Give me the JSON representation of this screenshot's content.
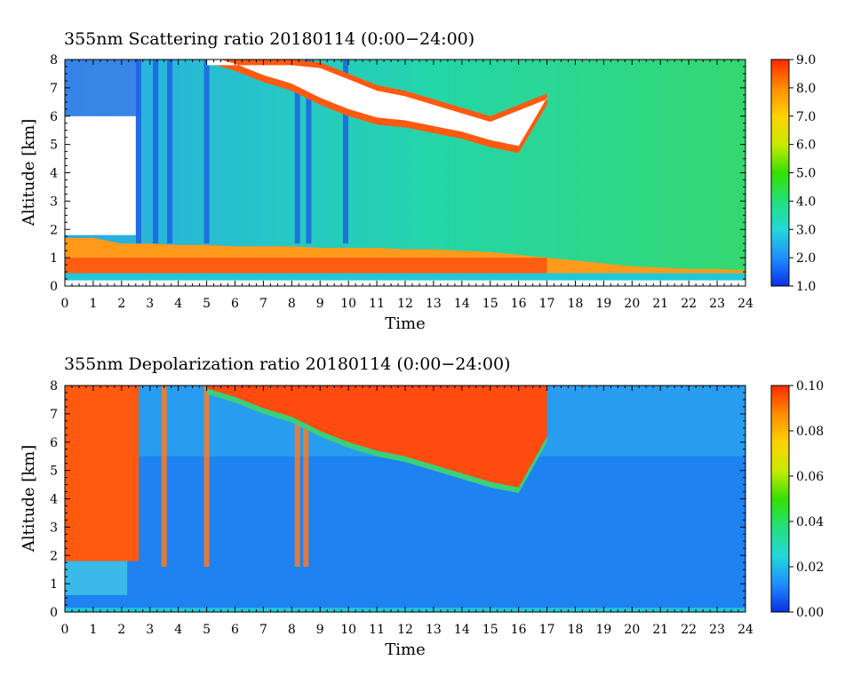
{
  "chart_data": [
    {
      "type": "heatmap",
      "title": "355nm Scattering ratio  20180114 (0:00−24:00)",
      "xlabel": "Time",
      "ylabel": "Altitude [km]",
      "xlim": [
        0,
        24
      ],
      "ylim": [
        0,
        8
      ],
      "x_ticks": [
        "0",
        "1",
        "2",
        "3",
        "4",
        "5",
        "6",
        "7",
        "8",
        "9",
        "10",
        "11",
        "12",
        "13",
        "14",
        "15",
        "16",
        "17",
        "18",
        "19",
        "20",
        "21",
        "22",
        "23",
        "24"
      ],
      "y_ticks": [
        "0",
        "1",
        "2",
        "3",
        "4",
        "5",
        "6",
        "7",
        "8"
      ],
      "colorbar": {
        "range": [
          1.0,
          9.0
        ],
        "ticks": [
          "1.0",
          "2.0",
          "3.0",
          "4.0",
          "5.0",
          "6.0",
          "7.0",
          "8.0",
          "9.0"
        ],
        "colors": [
          "#0a2fe6",
          "#1f8fff",
          "#22d9d9",
          "#22e07a",
          "#36e000",
          "#c8ea00",
          "#ffd200",
          "#ff8c00",
          "#ff2a00"
        ]
      },
      "features": {
        "boundary_layer_top_km": [
          1.7,
          1.7,
          1.5,
          1.5,
          1.45,
          1.45,
          1.4,
          1.4,
          1.4,
          1.35,
          1.35,
          1.35,
          1.3,
          1.3,
          1.25,
          1.2,
          1.1,
          1.0,
          0.9,
          0.8,
          0.7,
          0.65,
          0.6,
          0.6,
          0.55
        ],
        "cloud_base_km": [
          null,
          null,
          null,
          null,
          null,
          7.9,
          7.6,
          7.2,
          6.9,
          6.4,
          6.0,
          5.7,
          5.6,
          5.4,
          5.2,
          4.9,
          4.7,
          6.4,
          null,
          null,
          null,
          null,
          null,
          null,
          null
        ],
        "cloud_top_km": [
          null,
          null,
          null,
          null,
          null,
          8.0,
          8.0,
          8.0,
          8.0,
          7.9,
          7.5,
          7.1,
          6.9,
          6.6,
          6.3,
          6.0,
          6.4,
          6.8,
          null,
          null,
          null,
          null,
          null,
          null,
          null
        ]
      }
    },
    {
      "type": "heatmap",
      "title": "355nm Depolarization ratio  20180114 (0:00−24:00)",
      "xlabel": "Time",
      "ylabel": "Altitude [km]",
      "xlim": [
        0,
        24
      ],
      "ylim": [
        0,
        8
      ],
      "x_ticks": [
        "0",
        "1",
        "2",
        "3",
        "4",
        "5",
        "6",
        "7",
        "8",
        "9",
        "10",
        "11",
        "12",
        "13",
        "14",
        "15",
        "16",
        "17",
        "18",
        "19",
        "20",
        "21",
        "22",
        "23",
        "24"
      ],
      "y_ticks": [
        "0",
        "1",
        "2",
        "3",
        "4",
        "5",
        "6",
        "7",
        "8"
      ],
      "colorbar": {
        "range": [
          0.0,
          0.1
        ],
        "ticks": [
          "0.00",
          "0.02",
          "0.04",
          "0.06",
          "0.08",
          "0.10"
        ],
        "colors": [
          "#0a2fe6",
          "#1f8fff",
          "#22d9d9",
          "#22e07a",
          "#36e000",
          "#c8ea00",
          "#ffd200",
          "#ff8c00",
          "#ff2a00"
        ]
      },
      "features": {
        "cloud_base_km": [
          null,
          null,
          null,
          null,
          null,
          7.9,
          7.6,
          7.2,
          6.9,
          6.4,
          6.0,
          5.7,
          5.5,
          5.2,
          4.9,
          4.6,
          4.4,
          6.2,
          null,
          null,
          null,
          null,
          null,
          null,
          null
        ],
        "cloud_top_km": [
          null,
          null,
          null,
          null,
          null,
          8.0,
          8.0,
          8.0,
          8.0,
          8.0,
          8.0,
          8.0,
          8.0,
          8.0,
          8.0,
          8.0,
          8.0,
          8.0,
          null,
          null,
          null,
          null,
          null,
          null,
          null
        ]
      }
    }
  ]
}
